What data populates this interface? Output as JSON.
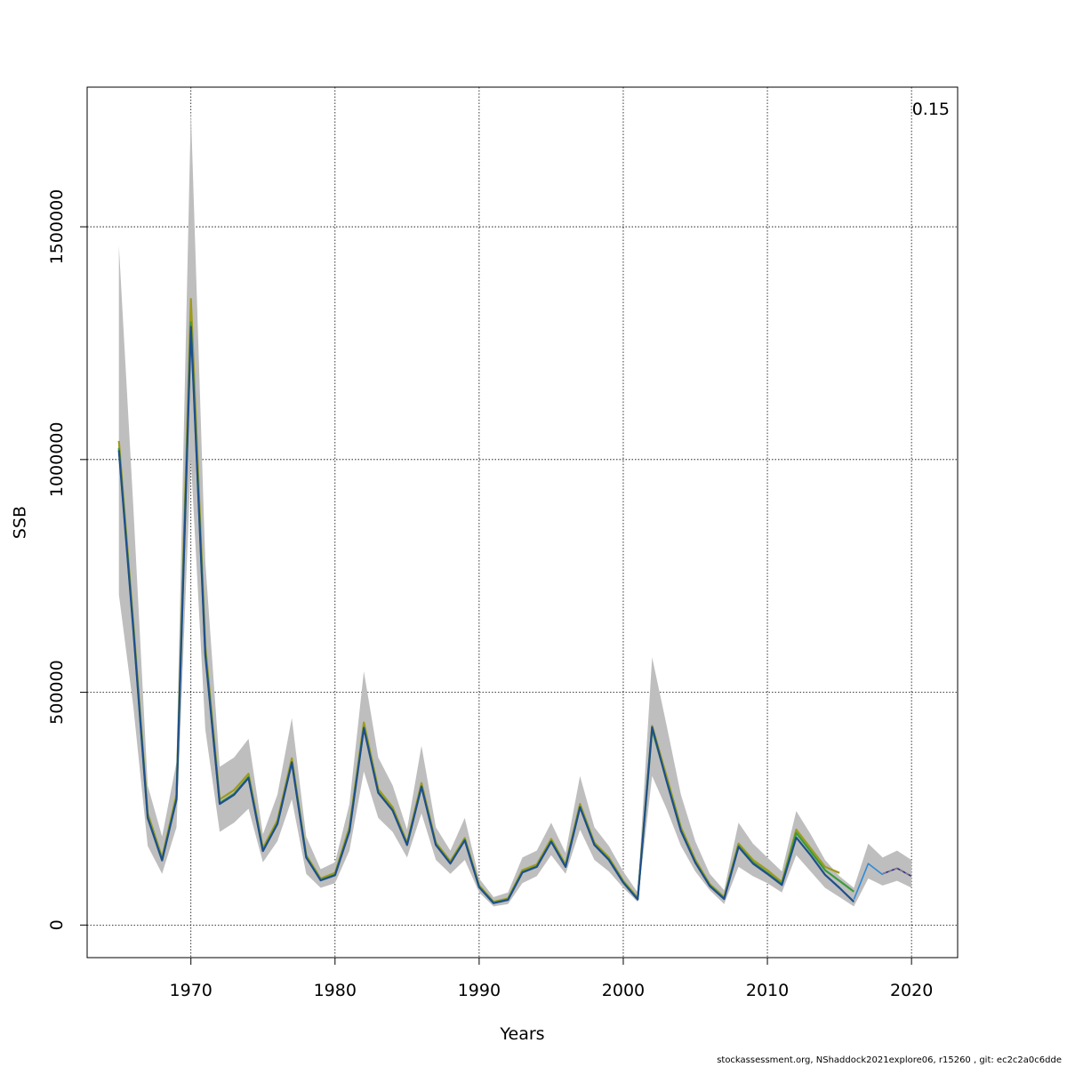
{
  "chart_data": {
    "type": "line",
    "xlabel": "Years",
    "ylabel": "SSB",
    "corner_label": "0.15",
    "xlim": [
      1962.8,
      2023.2
    ],
    "ylim": [
      -70000,
      1800000
    ],
    "x_ticks": [
      1970,
      1980,
      1990,
      2000,
      2010,
      2020
    ],
    "y_ticks": [
      0,
      500000,
      1000000,
      1500000
    ],
    "x_tick_labels": [
      "1970",
      "1980",
      "1990",
      "2000",
      "2010",
      "2020"
    ],
    "y_tick_labels": [
      "0",
      "500000",
      "1000000",
      "1500000"
    ],
    "grid": true,
    "band": {
      "color": "#bebebe",
      "x": [
        1965,
        1966,
        1967,
        1968,
        1969,
        1970,
        1971,
        1972,
        1973,
        1974,
        1975,
        1976,
        1977,
        1978,
        1979,
        1980,
        1981,
        1982,
        1983,
        1984,
        1985,
        1986,
        1987,
        1988,
        1989,
        1990,
        1991,
        1992,
        1993,
        1994,
        1995,
        1996,
        1997,
        1998,
        1999,
        2000,
        2001,
        2002,
        2003,
        2004,
        2005,
        2006,
        2007,
        2008,
        2009,
        2010,
        2011,
        2012,
        2013,
        2014,
        2015,
        2016,
        2017,
        2018,
        2019,
        2020
      ],
      "lower": [
        710000,
        470000,
        170000,
        110000,
        210000,
        1000000,
        420000,
        200000,
        220000,
        250000,
        135000,
        180000,
        270000,
        110000,
        80000,
        90000,
        160000,
        330000,
        230000,
        200000,
        145000,
        240000,
        140000,
        110000,
        140000,
        70000,
        40000,
        45000,
        90000,
        105000,
        150000,
        110000,
        205000,
        140000,
        115000,
        80000,
        50000,
        320000,
        250000,
        170000,
        115000,
        75000,
        45000,
        125000,
        105000,
        90000,
        70000,
        150000,
        115000,
        80000,
        60000,
        40000,
        100000,
        85000,
        95000,
        80000
      ],
      "upper": [
        1460000,
        900000,
        300000,
        190000,
        350000,
        1750000,
        780000,
        340000,
        360000,
        400000,
        195000,
        280000,
        445000,
        190000,
        120000,
        135000,
        260000,
        545000,
        360000,
        300000,
        205000,
        385000,
        210000,
        160000,
        230000,
        100000,
        60000,
        70000,
        145000,
        160000,
        220000,
        155000,
        320000,
        210000,
        170000,
        115000,
        70000,
        575000,
        430000,
        280000,
        180000,
        110000,
        75000,
        220000,
        175000,
        145000,
        115000,
        245000,
        195000,
        140000,
        105000,
        80000,
        175000,
        145000,
        160000,
        140000
      ]
    },
    "series": [
      {
        "color": "#9f9a1c",
        "x": [
          1965,
          1966,
          1967,
          1968,
          1969,
          1970,
          1971,
          1972,
          1973,
          1974,
          1975,
          1976,
          1977,
          1978,
          1979,
          1980,
          1981,
          1982,
          1983,
          1984,
          1985,
          1986,
          1987,
          1988,
          1989,
          1990,
          1991,
          1992,
          1993,
          1994,
          1995,
          1996,
          1997,
          1998,
          1999,
          2000,
          2001,
          2002,
          2003,
          2004,
          2005,
          2006,
          2007,
          2008,
          2009,
          2010,
          2011,
          2012,
          2013,
          2014,
          2015
        ],
        "values": [
          1040000,
          650000,
          240000,
          145000,
          280000,
          1345000,
          600000,
          270000,
          290000,
          325000,
          165000,
          225000,
          358000,
          150000,
          100000,
          112000,
          210000,
          435000,
          292000,
          253000,
          177000,
          305000,
          177000,
          137000,
          187000,
          85000,
          50000,
          57000,
          118000,
          130000,
          185000,
          130000,
          260000,
          177000,
          145000,
          95000,
          58000,
          428000,
          320000,
          210000,
          140000,
          88000,
          60000,
          175000,
          140000,
          118000,
          92000,
          205000,
          165000,
          125000,
          112000
        ]
      },
      {
        "color": "#3b9c3b",
        "x": [
          1965,
          1966,
          1967,
          1968,
          1969,
          1970,
          1971,
          1972,
          1973,
          1974,
          1975,
          1976,
          1977,
          1978,
          1979,
          1980,
          1981,
          1982,
          1983,
          1984,
          1985,
          1986,
          1987,
          1988,
          1989,
          1990,
          1991,
          1992,
          1993,
          1994,
          1995,
          1996,
          1997,
          1998,
          1999,
          2000,
          2001,
          2002,
          2003,
          2004,
          2005,
          2006,
          2007,
          2008,
          2009,
          2010,
          2011,
          2012,
          2013,
          2014,
          2015,
          2016
        ],
        "values": [
          1025000,
          640000,
          232000,
          140000,
          272000,
          1295000,
          585000,
          262000,
          282000,
          318000,
          160000,
          218000,
          350000,
          146000,
          97000,
          108000,
          203000,
          425000,
          285000,
          247000,
          173000,
          298000,
          173000,
          133000,
          183000,
          82000,
          48000,
          55000,
          114000,
          126000,
          180000,
          126000,
          254000,
          173000,
          141000,
          92000,
          56000,
          420000,
          312000,
          204000,
          135000,
          85000,
          57000,
          170000,
          135000,
          112000,
          88000,
          198000,
          158000,
          118000,
          95000,
          72000
        ]
      },
      {
        "color": "#1f4f8a",
        "x": [
          1965,
          1966,
          1967,
          1968,
          1969,
          1970,
          1971,
          1972,
          1973,
          1974,
          1975,
          1976,
          1977,
          1978,
          1979,
          1980,
          1981,
          1982,
          1983,
          1984,
          1985,
          1986,
          1987,
          1988,
          1989,
          1990,
          1991,
          1992,
          1993,
          1994,
          1995,
          1996,
          1997,
          1998,
          1999,
          2000,
          2001,
          2002,
          2003,
          2004,
          2005,
          2006,
          2007,
          2008,
          2009,
          2010,
          2011,
          2012,
          2013,
          2014,
          2015,
          2016
        ],
        "values": [
          1020000,
          635000,
          230000,
          139000,
          270000,
          1285000,
          580000,
          260000,
          280000,
          316000,
          159000,
          217000,
          349000,
          145000,
          96000,
          107000,
          201000,
          423000,
          284000,
          246000,
          172000,
          297000,
          172000,
          132000,
          182000,
          81000,
          47000,
          54000,
          113000,
          125000,
          179000,
          125000,
          253000,
          172000,
          140000,
          91000,
          55000,
          425000,
          310000,
          202000,
          134000,
          84000,
          56000,
          168000,
          132000,
          110000,
          86000,
          188000,
          150000,
          108000,
          80000,
          50000
        ]
      },
      {
        "color": "#2e8bd8",
        "x": [
          2016,
          2017,
          2018
        ],
        "values": [
          55000,
          132000,
          108000
        ]
      },
      {
        "color": "#3a2a8a",
        "x": [
          2018,
          2019,
          2020
        ],
        "values": [
          110000,
          122000,
          105000
        ]
      }
    ]
  },
  "footer": {
    "text": "stockassessment.org, NShaddock2021explore06, r15260 , git: ec2c2a0c6dde"
  }
}
